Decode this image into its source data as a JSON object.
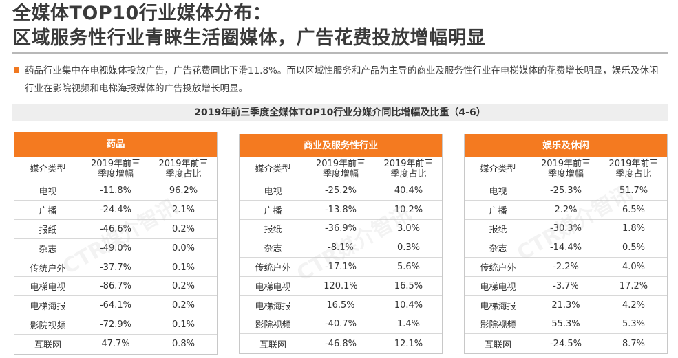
{
  "title": {
    "line1": "全媒体TOP10行业媒体分布：",
    "line2": "区域服务性行业青睐生活圈媒体，广告花费投放增幅明显"
  },
  "summary": "药品行业集中在电视媒体投放广告，广告花费同比下滑11.8%。而以区域性服务和产品为主导的商业及服务性行业在电梯媒体的花费增长明显，娱乐及休闲行业在影院视频和电梯海报媒体的广告投放增长明显。",
  "subtitle": "2019年前三季度全媒体TOP10行业分媒介同比增幅及比重（4-6）",
  "watermark": "CTR媒介智讯",
  "colors": {
    "accent": "#f47a20",
    "bullet": "#f07820"
  },
  "columns": {
    "media": "媒介类型",
    "growth_line1": "2019年前三",
    "growth_line2": "季度增幅",
    "share_line1": "2019年前三",
    "share_line2": "季度占比"
  },
  "panels": [
    {
      "name": "药品",
      "rows": [
        [
          "电视",
          "-11.8%",
          "96.2%"
        ],
        [
          "广播",
          "-24.4%",
          "2.1%"
        ],
        [
          "报纸",
          "-46.6%",
          "0.2%"
        ],
        [
          "杂志",
          "-49.0%",
          "0.0%"
        ],
        [
          "传统户外",
          "-37.7%",
          "0.1%"
        ],
        [
          "电梯电视",
          "-86.7%",
          "0.2%"
        ],
        [
          "电梯海报",
          "-64.1%",
          "0.2%"
        ],
        [
          "影院视频",
          "-72.9%",
          "0.1%"
        ],
        [
          "互联网",
          "47.7%",
          "0.8%"
        ]
      ]
    },
    {
      "name": "商业及服务性行业",
      "rows": [
        [
          "电视",
          "-25.2%",
          "40.4%"
        ],
        [
          "广播",
          "-13.8%",
          "10.2%"
        ],
        [
          "报纸",
          "-36.9%",
          "3.0%"
        ],
        [
          "杂志",
          "-8.1%",
          "0.3%"
        ],
        [
          "传统户外",
          "-17.1%",
          "5.6%"
        ],
        [
          "电梯电视",
          "120.1%",
          "16.5%"
        ],
        [
          "电梯海报",
          "16.5%",
          "10.4%"
        ],
        [
          "影院视频",
          "-40.7%",
          "1.4%"
        ],
        [
          "互联网",
          "-46.8%",
          "12.1%"
        ]
      ]
    },
    {
      "name": "娱乐及休闲",
      "rows": [
        [
          "电视",
          "-25.3%",
          "51.7%"
        ],
        [
          "广播",
          "2.2%",
          "6.5%"
        ],
        [
          "报纸",
          "-30.3%",
          "1.8%"
        ],
        [
          "杂志",
          "-14.4%",
          "0.5%"
        ],
        [
          "传统户外",
          "-2.2%",
          "4.0%"
        ],
        [
          "电梯电视",
          "-3.7%",
          "17.2%"
        ],
        [
          "电梯海报",
          "21.3%",
          "4.2%"
        ],
        [
          "影院视频",
          "55.3%",
          "5.3%"
        ],
        [
          "互联网",
          "-24.5%",
          "8.7%"
        ]
      ]
    }
  ]
}
